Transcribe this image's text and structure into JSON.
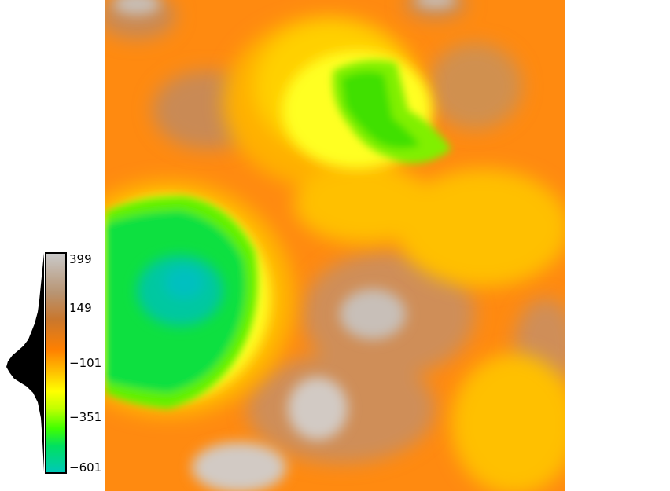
{
  "colorbar": {
    "ticks": [
      "399",
      "149",
      "−101",
      "−351",
      "−601"
    ],
    "value_max": 399,
    "value_min": -601,
    "colormap": [
      "#c9c9c9",
      "#b89472",
      "#c9772d",
      "#ff8000",
      "#ffc000",
      "#ffff00",
      "#c0ff00",
      "#40ff00",
      "#00e060",
      "#00c8b8"
    ]
  },
  "map": {
    "background_color": "#ff8a10",
    "low_color": "#00c8b8",
    "high_color": "#c9c9c9"
  }
}
